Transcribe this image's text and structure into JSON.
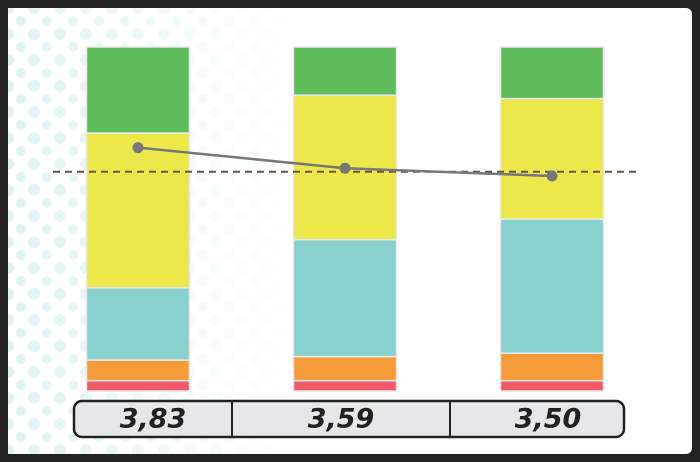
{
  "chart_data": {
    "type": "stacked-bar",
    "ylim": [
      0,
      100
    ],
    "series": [
      {
        "color": "#ee5a68",
        "values": [
          3,
          3,
          3
        ]
      },
      {
        "color": "#f59b3a",
        "values": [
          6,
          7,
          8
        ]
      },
      {
        "color": "#88d1cc",
        "values": [
          21,
          34,
          39
        ]
      },
      {
        "color": "#ebe84a",
        "values": [
          45,
          42,
          35
        ]
      },
      {
        "color": "#5ebd5a",
        "values": [
          25,
          14,
          15
        ]
      }
    ],
    "line": {
      "type": "line",
      "axis": "y2",
      "color": "#777777",
      "values": [
        3.83,
        3.59,
        3.5
      ],
      "value_labels": [
        "3,83",
        "3,59",
        "3,50"
      ]
    },
    "y2lim": [
      1,
      5
    ],
    "reference_line": {
      "value": 3.55,
      "color": "#6b5346"
    }
  }
}
